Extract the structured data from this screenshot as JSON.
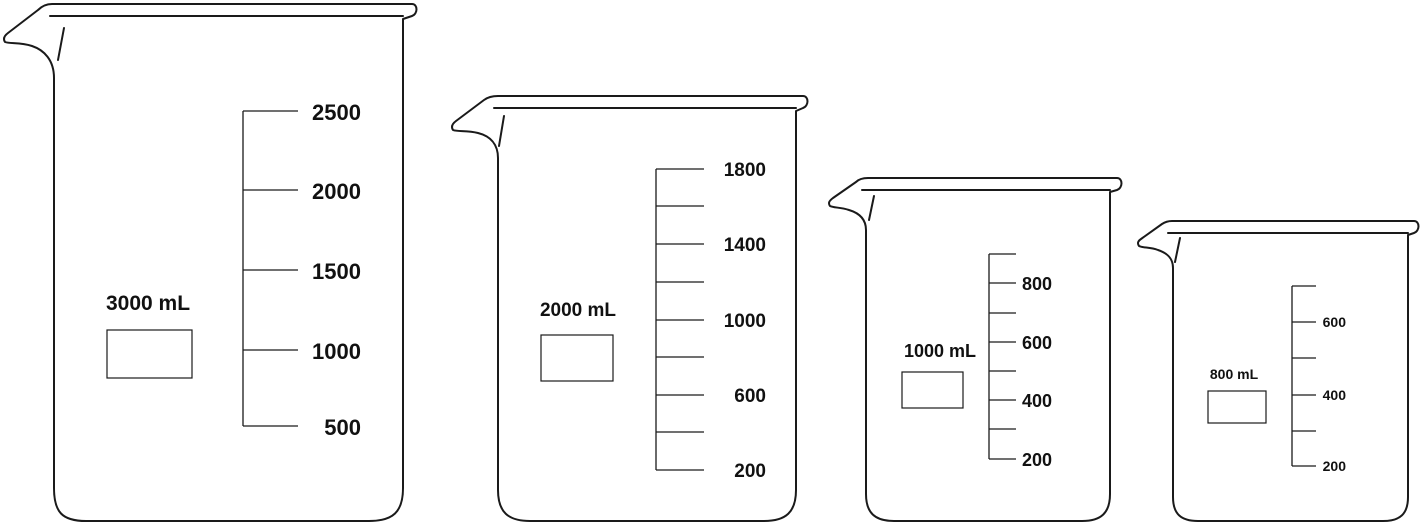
{
  "beakers": [
    {
      "capacity_label": "3000 mL",
      "graduations": [
        "2500",
        "2000",
        "1500",
        "1000",
        "500"
      ]
    },
    {
      "capacity_label": "2000 mL",
      "graduations": [
        "1800",
        "",
        "1400",
        "",
        "1000",
        "",
        "600",
        "",
        "200"
      ]
    },
    {
      "capacity_label": "1000 mL",
      "graduations": [
        "",
        "800",
        "",
        "600",
        "",
        "400",
        "",
        "200"
      ]
    },
    {
      "capacity_label": "800 mL",
      "graduations": [
        "",
        "600",
        "",
        "400",
        "",
        "200"
      ]
    }
  ],
  "colors": {
    "stroke": "#1a1a1a",
    "background": "#ffffff"
  }
}
